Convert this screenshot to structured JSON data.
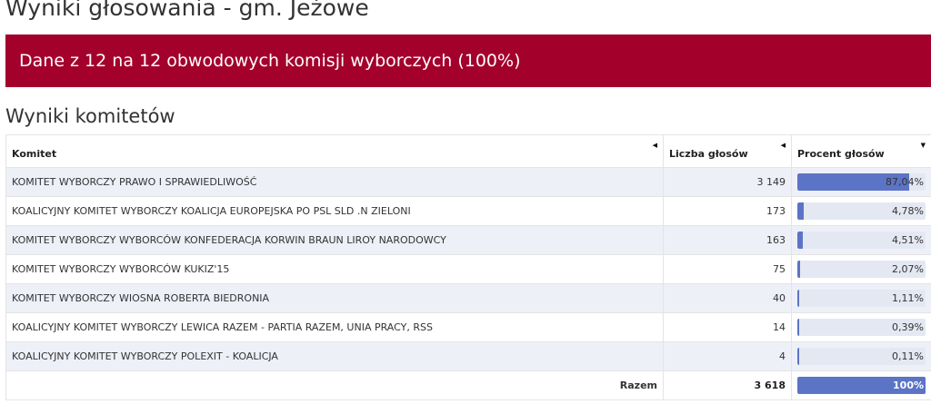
{
  "page_title": "Wyniki głosowania - gm. Jeżowe",
  "banner_text": "Dane z 12 na 12 obwodowych komisji wyborczych (100%)",
  "section_title": "Wyniki komitetów",
  "table": {
    "headers": {
      "committee": "Komitet",
      "votes": "Liczba głosów",
      "percent": "Procent głosów"
    },
    "rows": [
      {
        "name": "KOMITET WYBORCZY PRAWO I SPRAWIEDLIWOŚĆ",
        "votes": "3 149",
        "percent_label": "87,04%",
        "percent": 87.04
      },
      {
        "name": "KOALICYJNY KOMITET WYBORCZY KOALICJA EUROPEJSKA PO PSL SLD .N ZIELONI",
        "votes": "173",
        "percent_label": "4,78%",
        "percent": 4.78
      },
      {
        "name": "KOMITET WYBORCZY WYBORCÓW KONFEDERACJA KORWIN BRAUN LIROY NARODOWCY",
        "votes": "163",
        "percent_label": "4,51%",
        "percent": 4.51
      },
      {
        "name": "KOMITET WYBORCZY WYBORCÓW KUKIZ'15",
        "votes": "75",
        "percent_label": "2,07%",
        "percent": 2.07
      },
      {
        "name": "KOMITET WYBORCZY WIOSNA ROBERTA BIEDRONIA",
        "votes": "40",
        "percent_label": "1,11%",
        "percent": 1.11
      },
      {
        "name": "KOALICYJNY KOMITET WYBORCZY LEWICA RAZEM - PARTIA RAZEM, UNIA PRACY, RSS",
        "votes": "14",
        "percent_label": "0,39%",
        "percent": 0.39
      },
      {
        "name": "KOALICYJNY KOMITET WYBORCZY POLEXIT - KOALICJA",
        "votes": "4",
        "percent_label": "0,11%",
        "percent": 0.11
      }
    ],
    "total": {
      "label": "Razem",
      "votes": "3 618",
      "percent_label": "100%",
      "percent": 100
    }
  },
  "colors": {
    "banner": "#a3002b",
    "bar_fill": "#5b74c6",
    "bar_track": "#e4e8f2",
    "row_stripe": "#eef0f8"
  },
  "icons": {
    "committee_sort": "sort-left-icon",
    "votes_sort": "sort-left-icon",
    "percent_sort": "sort-down-icon"
  }
}
